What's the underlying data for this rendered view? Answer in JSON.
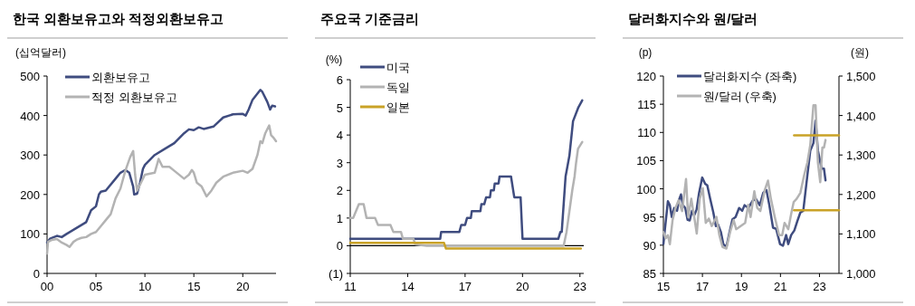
{
  "chart_data": [
    {
      "type": "line",
      "title": "한국 외환보유고와 적정외환보유고",
      "ylabel": "(십억달러)",
      "legend": "top left",
      "xlim": [
        2000,
        2023.4
      ],
      "xticks": [
        {
          "value": 2000,
          "label": "00"
        },
        {
          "value": 2005,
          "label": "05"
        },
        {
          "value": 2010,
          "label": "10"
        },
        {
          "value": 2015,
          "label": "15"
        },
        {
          "value": 2020,
          "label": "20"
        }
      ],
      "ylim": [
        0,
        500
      ],
      "yticks": [
        0,
        100,
        200,
        300,
        400,
        500
      ],
      "series": [
        {
          "name": "외환보유고",
          "color": "#3f4c7f",
          "x": [
            2000,
            2000.3,
            2001,
            2001.5,
            2002,
            2003,
            2004,
            2004.5,
            2005,
            2005.3,
            2005.5,
            2006,
            2007,
            2007.5,
            2008,
            2008.4,
            2008.8,
            2008.9,
            2009.2,
            2009.5,
            2009.8,
            2010,
            2011,
            2012,
            2013,
            2014,
            2014.5,
            2015,
            2015.5,
            2016,
            2017,
            2018,
            2019,
            2020,
            2020.3,
            2020.6,
            2021,
            2021.8,
            2022,
            2022.5,
            2022.8,
            2023,
            2023.3
          ],
          "values": [
            78,
            88,
            95,
            92,
            100,
            115,
            130,
            160,
            170,
            200,
            207,
            210,
            240,
            255,
            262,
            255,
            220,
            200,
            202,
            230,
            265,
            275,
            300,
            315,
            330,
            355,
            365,
            363,
            370,
            366,
            372,
            395,
            403,
            404,
            400,
            415,
            440,
            465,
            460,
            435,
            415,
            425,
            423
          ]
        },
        {
          "name": "적정 외환보유고",
          "color": "#b3b3b3",
          "x": [
            2000,
            2000.1,
            2000.5,
            2001,
            2001.5,
            2002,
            2002.3,
            2002.7,
            2003,
            2003.5,
            2004,
            2004.5,
            2005,
            2005.5,
            2006,
            2006.5,
            2007,
            2007.5,
            2008,
            2008.5,
            2008.8,
            2009,
            2009.2,
            2009.6,
            2010,
            2011,
            2011.4,
            2011.8,
            2012.5,
            2013,
            2014,
            2014.5,
            2014.8,
            2015,
            2015.3,
            2015.8,
            2016.3,
            2016.8,
            2017.3,
            2018,
            2019,
            2020,
            2020.5,
            2021,
            2021.5,
            2021.8,
            2022,
            2022.3,
            2022.7,
            2022.9,
            2023.1,
            2023.4
          ],
          "values": [
            50,
            80,
            85,
            87,
            78,
            72,
            67,
            80,
            85,
            90,
            92,
            100,
            105,
            120,
            135,
            150,
            190,
            215,
            260,
            295,
            310,
            250,
            210,
            230,
            250,
            255,
            290,
            270,
            270,
            260,
            240,
            250,
            262,
            255,
            230,
            220,
            195,
            210,
            230,
            245,
            255,
            260,
            255,
            265,
            300,
            335,
            330,
            355,
            375,
            350,
            345,
            335
          ]
        }
      ]
    },
    {
      "type": "line",
      "title": "주요국 기준금리",
      "ylabel": "(%)",
      "legend": "top left",
      "xlim": [
        2011,
        2023.2
      ],
      "xticks": [
        {
          "value": 2011,
          "label": "11"
        },
        {
          "value": 2014,
          "label": "14"
        },
        {
          "value": 2017,
          "label": "17"
        },
        {
          "value": 2020,
          "label": "20"
        },
        {
          "value": 2023,
          "label": "23"
        }
      ],
      "ylim": [
        -1,
        6
      ],
      "yticks": [
        {
          "value": -1,
          "label": "(1)"
        },
        0,
        1,
        2,
        3,
        4,
        5,
        6
      ],
      "ref_lines": [
        {
          "axis": "y",
          "value": 0,
          "color": "#000000"
        }
      ],
      "series": [
        {
          "name": "미국",
          "color": "#3f4c7f",
          "x": [
            2011,
            2015.7,
            2015.75,
            2016.7,
            2016.8,
            2017.0,
            2017.1,
            2017.3,
            2017.35,
            2017.8,
            2017.85,
            2018.0,
            2018.1,
            2018.3,
            2018.35,
            2018.5,
            2018.55,
            2018.75,
            2018.8,
            2019.4,
            2019.57,
            2019.9,
            2020.0,
            2021.87,
            2021.98,
            2022.05,
            2022.25,
            2022.45,
            2022.64,
            2022.92,
            2023.12
          ],
          "values": [
            0.25,
            0.25,
            0.5,
            0.5,
            0.75,
            0.75,
            1.0,
            1.0,
            1.25,
            1.25,
            1.5,
            1.5,
            1.75,
            1.75,
            2.0,
            2.0,
            2.25,
            2.25,
            2.5,
            2.5,
            1.75,
            1.75,
            0.25,
            0.25,
            0.5,
            0.5,
            2.5,
            3.25,
            4.5,
            5.0,
            5.25
          ]
        },
        {
          "name": "독일",
          "color": "#b3b3b3",
          "x": [
            2011,
            2011.15,
            2011.3,
            2011.45,
            2011.7,
            2011.85,
            2012.3,
            2012.45,
            2013.1,
            2013.25,
            2013.65,
            2013.75,
            2014.3,
            2014.4,
            2015.0,
            2022.15,
            2022.3,
            2022.45,
            2022.6,
            2022.72,
            2022.8,
            2022.9,
            2023.12
          ],
          "values": [
            1.0,
            1.0,
            1.25,
            1.5,
            1.5,
            1.0,
            1.0,
            0.75,
            0.75,
            0.5,
            0.5,
            0.25,
            0.25,
            0.05,
            0,
            0,
            0.5,
            1.25,
            2.0,
            2.5,
            3.0,
            3.5,
            3.75
          ]
        },
        {
          "name": "일본",
          "color": "#c9a227",
          "x": [
            2011,
            2015.9,
            2016.0,
            2023.05
          ],
          "values": [
            0.1,
            0.1,
            -0.1,
            -0.1
          ]
        }
      ]
    },
    {
      "type": "line",
      "title": "달러화지수와 원/달러",
      "ylabel": "(p)",
      "y2label": "(원)",
      "legend": "top left",
      "xlim": [
        2015,
        2024
      ],
      "xticks": [
        {
          "value": 2015,
          "label": "15"
        },
        {
          "value": 2017,
          "label": "17"
        },
        {
          "value": 2019,
          "label": "19"
        },
        {
          "value": 2021,
          "label": "21"
        },
        {
          "value": 2023,
          "label": "23"
        }
      ],
      "ylim": [
        85,
        120
      ],
      "yticks": [
        85,
        90,
        95,
        100,
        105,
        110,
        115,
        120
      ],
      "y2lim": [
        1000,
        1500
      ],
      "y2ticks": [
        {
          "value": 1000,
          "label": "1,000"
        },
        {
          "value": 1100,
          "label": "1,100"
        },
        {
          "value": 1200,
          "label": "1,200"
        },
        {
          "value": 1300,
          "label": "1,300"
        },
        {
          "value": 1400,
          "label": "1,400"
        },
        {
          "value": 1500,
          "label": "1,500"
        }
      ],
      "series": [
        {
          "name": "달러화지수 (좌축)",
          "color": "#3f4c7f",
          "x": [
            2015,
            2015.08,
            2015.23,
            2015.33,
            2015.43,
            2015.55,
            2015.7,
            2015.8,
            2015.9,
            2016.0,
            2016.12,
            2016.24,
            2016.35,
            2016.47,
            2016.58,
            2016.7,
            2016.83,
            2016.99,
            2017.14,
            2017.25,
            2017.4,
            2017.56,
            2017.69,
            2017.8,
            2017.95,
            2018.07,
            2018.23,
            2018.39,
            2018.54,
            2018.7,
            2018.88,
            2019.04,
            2019.16,
            2019.35,
            2019.58,
            2019.74,
            2019.94,
            2020.12,
            2020.28,
            2020.43,
            2020.62,
            2020.78,
            2020.98,
            2021.13,
            2021.29,
            2021.4,
            2021.55,
            2021.71,
            2021.86,
            2022.02,
            2022.17,
            2022.33,
            2022.53,
            2022.69,
            2022.8,
            2022.92,
            2023.11,
            2023.23,
            2023.31
          ],
          "values": [
            90.2,
            92.9,
            97.8,
            97.1,
            95,
            96.6,
            96.1,
            98,
            99,
            97.1,
            96.6,
            94.5,
            94.4,
            96.1,
            95.3,
            96.3,
            99.3,
            102,
            100.9,
            100.6,
            98.2,
            95.8,
            93.4,
            93.7,
            92.3,
            90.2,
            89.7,
            92.3,
            94.6,
            95,
            96.6,
            96.1,
            97.1,
            96.6,
            97.9,
            98.2,
            97.1,
            99.3,
            99.8,
            97.1,
            93.1,
            92.9,
            90.2,
            89.9,
            91.8,
            90.2,
            91.8,
            92.6,
            94.2,
            95.8,
            96.1,
            100.9,
            106.8,
            108.1,
            112.1,
            106.8,
            103.6,
            103.6,
            101.5
          ]
        },
        {
          "name": "원/달러 (우축)",
          "color": "#b3b3b3",
          "axis": "y2",
          "x": [
            2015,
            2015.12,
            2015.23,
            2015.33,
            2015.47,
            2015.62,
            2015.78,
            2015.96,
            2016.16,
            2016.27,
            2016.43,
            2016.58,
            2016.71,
            2016.86,
            2017.02,
            2017.17,
            2017.33,
            2017.48,
            2017.72,
            2017.87,
            2018.03,
            2018.23,
            2018.42,
            2018.6,
            2018.73,
            2018.96,
            2019.19,
            2019.35,
            2019.47,
            2019.66,
            2019.81,
            2019.97,
            2020.2,
            2020.36,
            2020.51,
            2020.71,
            2020.93,
            2021.09,
            2021.21,
            2021.4,
            2021.55,
            2021.68,
            2021.83,
            2022.02,
            2022.22,
            2022.38,
            2022.53,
            2022.69,
            2022.8,
            2022.92,
            2023.04,
            2023.15,
            2023.23,
            2023.31
          ],
          "values": [
            1105,
            1089,
            1097,
            1074,
            1135,
            1166,
            1185,
            1158,
            1239,
            1143,
            1189,
            1143,
            1101,
            1189,
            1216,
            1128,
            1139,
            1120,
            1143,
            1097,
            1067,
            1063,
            1105,
            1135,
            1112,
            1120,
            1128,
            1174,
            1143,
            1208,
            1166,
            1158,
            1212,
            1235,
            1189,
            1143,
            1097,
            1097,
            1128,
            1112,
            1151,
            1181,
            1189,
            1204,
            1250,
            1281,
            1326,
            1426,
            1426,
            1281,
            1231,
            1319,
            1319,
            1338
          ]
        },
        {
          "type": "line",
          "color": "#c9a227",
          "axis": "y2",
          "x": [
            2021.7,
            2024
          ],
          "values": [
            1350,
            1350
          ]
        },
        {
          "type": "line",
          "color": "#c9a227",
          "axis": "y2",
          "x": [
            2021.7,
            2024
          ],
          "values": [
            1160,
            1160
          ]
        }
      ]
    }
  ]
}
